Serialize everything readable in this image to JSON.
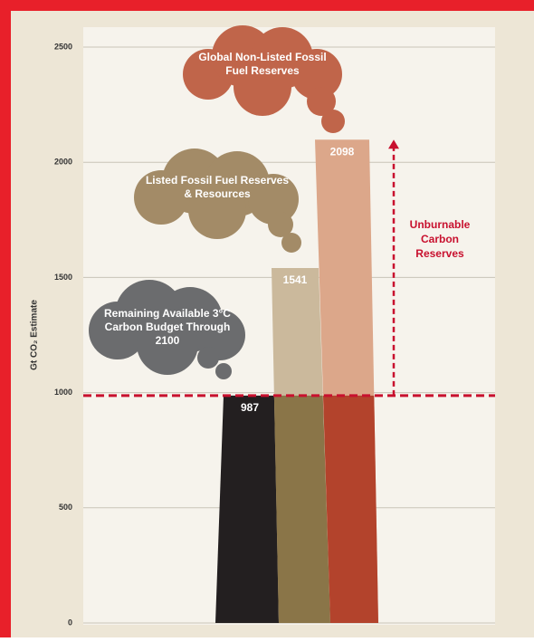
{
  "chart_data": {
    "type": "bar",
    "categories": [
      "Remaining Available 3°C Carbon Budget Through 2100",
      "Listed Fossil Fuel Reserves & Resources",
      "Global Non-Listed Fossil Fuel Reserves"
    ],
    "values": [
      987,
      1541,
      2098
    ],
    "colors": [
      "#231f20",
      "#cbb99c",
      "#dca78a"
    ],
    "base_colors": [
      "#231f20",
      "#8a7548",
      "#b3432c"
    ],
    "cloud_colors": [
      "#6b6c6e",
      "#a38b67",
      "#c0654a"
    ],
    "y_label": "Gt CO₂ Estimate",
    "annotation": "Unburnable Carbon Reserves",
    "annotation_color": "#c8102e",
    "ylim": [
      0,
      2500
    ],
    "yticks": [
      0,
      500,
      1000,
      1500,
      2000,
      2500
    ],
    "grid": true
  }
}
